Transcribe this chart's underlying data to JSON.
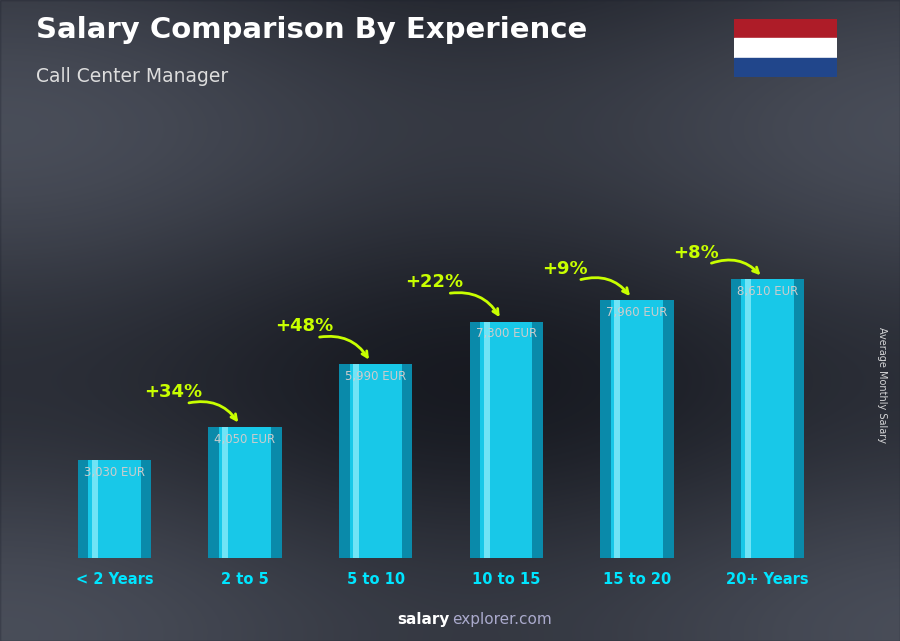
{
  "title": "Salary Comparison By Experience",
  "subtitle": "Call Center Manager",
  "ylabel": "Average Monthly Salary",
  "categories": [
    "< 2 Years",
    "2 to 5",
    "5 to 10",
    "10 to 15",
    "15 to 20",
    "20+ Years"
  ],
  "values": [
    3030,
    4050,
    5990,
    7300,
    7960,
    8610
  ],
  "pct_changes": [
    "+34%",
    "+48%",
    "+22%",
    "+9%",
    "+8%"
  ],
  "salary_labels": [
    "3,030 EUR",
    "4,050 EUR",
    "5,990 EUR",
    "7,300 EUR",
    "7,960 EUR",
    "8,610 EUR"
  ],
  "bar_color_main": "#18c8e8",
  "bar_color_light": "#7ae8f8",
  "bar_color_dark": "#0a8aaa",
  "pct_color": "#c8ff00",
  "salary_color": "#cccccc",
  "title_color": "#ffffff",
  "subtitle_color": "#dddddd",
  "bg_color": "#5a6070",
  "cat_label_color": "#00e5ff",
  "flag_red": "#AE1C28",
  "flag_white": "#FFFFFF",
  "flag_blue": "#21468B",
  "footer_salary_color": "#ffffff",
  "footer_explorer_color": "#aaaaaa",
  "ylim_max": 11500
}
